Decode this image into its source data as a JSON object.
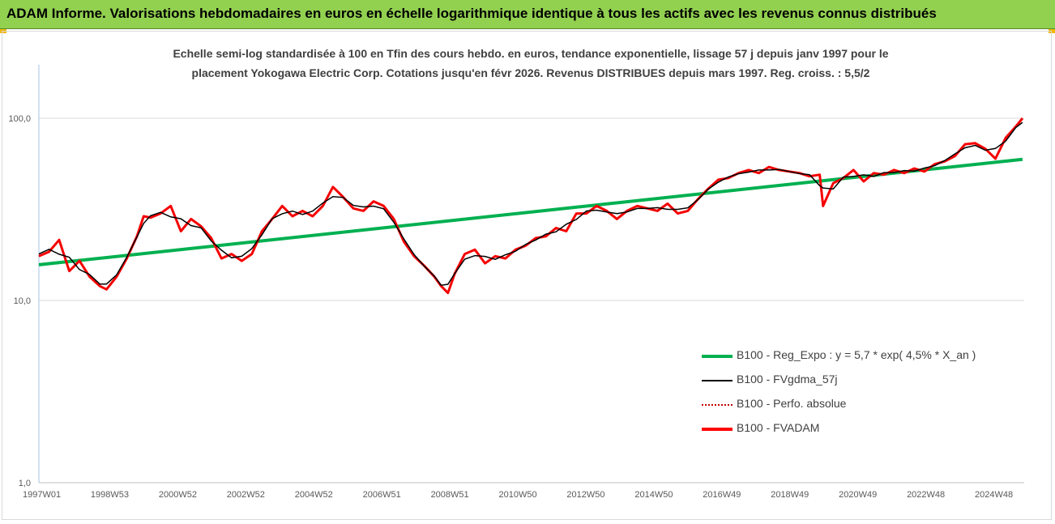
{
  "banner": {
    "title": "ADAM Informe. Valorisations hebdomadaires en euros en échelle logarithmique identique à tous les actifs avec les revenus connus distribués"
  },
  "colors": {
    "banner": "#92d050",
    "regression": "#00b050",
    "smoothed": "#000000",
    "perf": "#c00000",
    "fvadam": "#ff0000",
    "axis": "#a6c4e6"
  },
  "chart_data": {
    "type": "line",
    "title_lines": [
      "Echelle semi-log standardisée à 100 en Tfin des cours hebdo. en euros, tendance exponentielle, lissage 57 j depuis janv 1997 pour le",
      "placement Yokogawa Electric Corp. Cotations jusqu'en févr 2026.  Revenus DISTRIBUES depuis mars 1997. Reg. croiss. : 5,5/2"
    ],
    "y_scale": "log",
    "ylim": [
      1,
      200
    ],
    "y_ticks": [
      "1,0",
      "10,0",
      "100,0"
    ],
    "x_ticks": [
      "1997W01",
      "1998W53",
      "2000W52",
      "2002W52",
      "2004W52",
      "2006W51",
      "2008W51",
      "2010W50",
      "2012W50",
      "2014W50",
      "2016W49",
      "2018W49",
      "2020W49",
      "2022W48",
      "2024W48"
    ],
    "xlim": [
      1997.0,
      2026.15
    ],
    "grid": "horizontal",
    "legend_position": "bottom-right",
    "series": [
      {
        "name": "B100 - Reg_Expo : y = 5,7 * exp( 4,5% *  X_an )",
        "style": "green-thick",
        "x": [
          1997.0,
          2026.1
        ],
        "y": [
          15.7,
          59.5
        ]
      },
      {
        "name": "B100 - FVgdma_57j",
        "style": "black-thin"
      },
      {
        "name": "B100 - Perfo. absolue",
        "style": "red-dotted"
      },
      {
        "name": "B100 - FVADAM",
        "style": "red-thick",
        "x": [
          1997.0,
          1997.3,
          1997.6,
          1997.9,
          1998.2,
          1998.5,
          1998.8,
          1999.0,
          1999.3,
          1999.6,
          1999.9,
          2000.1,
          2000.3,
          2000.6,
          2000.9,
          2001.2,
          2001.5,
          2001.8,
          2002.1,
          2002.4,
          2002.7,
          2003.0,
          2003.3,
          2003.6,
          2003.9,
          2004.2,
          2004.5,
          2004.8,
          2005.1,
          2005.4,
          2005.7,
          2006.0,
          2006.3,
          2006.6,
          2006.9,
          2007.2,
          2007.5,
          2007.8,
          2008.1,
          2008.4,
          2008.7,
          2008.9,
          2009.1,
          2009.3,
          2009.6,
          2009.9,
          2010.2,
          2010.5,
          2010.8,
          2011.1,
          2011.4,
          2011.7,
          2012.0,
          2012.3,
          2012.6,
          2012.9,
          2013.2,
          2013.5,
          2013.8,
          2014.1,
          2014.4,
          2014.7,
          2015.0,
          2015.3,
          2015.6,
          2015.9,
          2016.2,
          2016.5,
          2016.8,
          2017.1,
          2017.4,
          2017.7,
          2018.0,
          2018.3,
          2018.6,
          2018.9,
          2019.2,
          2019.5,
          2019.8,
          2020.1,
          2020.2,
          2020.5,
          2020.8,
          2021.1,
          2021.4,
          2021.7,
          2022.0,
          2022.3,
          2022.6,
          2022.9,
          2023.2,
          2023.5,
          2023.8,
          2024.1,
          2024.4,
          2024.7,
          2025.0,
          2025.3,
          2025.6,
          2025.9,
          2026.1
        ],
        "y": [
          17.5,
          18.5,
          21.5,
          14.5,
          16.5,
          13.5,
          12.0,
          11.5,
          13.5,
          17.0,
          22.5,
          29.0,
          28.5,
          30.0,
          33.0,
          24.0,
          28.0,
          25.5,
          22.0,
          17.0,
          18.0,
          16.5,
          18.0,
          24.0,
          28.0,
          33.0,
          29.0,
          31.0,
          29.0,
          33.0,
          42.0,
          37.0,
          32.0,
          31.0,
          35.0,
          33.0,
          28.0,
          21.0,
          17.5,
          15.5,
          13.5,
          12.0,
          11.0,
          14.0,
          18.0,
          19.0,
          16.0,
          17.5,
          17.0,
          19.0,
          20.0,
          22.0,
          22.5,
          25.0,
          24.0,
          30.0,
          30.0,
          33.0,
          31.0,
          28.0,
          31.0,
          33.0,
          32.0,
          31.0,
          34.0,
          30.0,
          31.0,
          36.0,
          41.0,
          46.0,
          47.0,
          50.0,
          52.0,
          50.0,
          54.0,
          52.0,
          51.0,
          50.0,
          48.0,
          49.0,
          33.0,
          44.0,
          47.0,
          52.0,
          45.0,
          50.0,
          49.0,
          52.0,
          50.0,
          53.0,
          51.0,
          56.0,
          58.0,
          62.0,
          72.0,
          73.0,
          68.0,
          60.0,
          78.0,
          90.0,
          100.0
        ]
      }
    ]
  }
}
